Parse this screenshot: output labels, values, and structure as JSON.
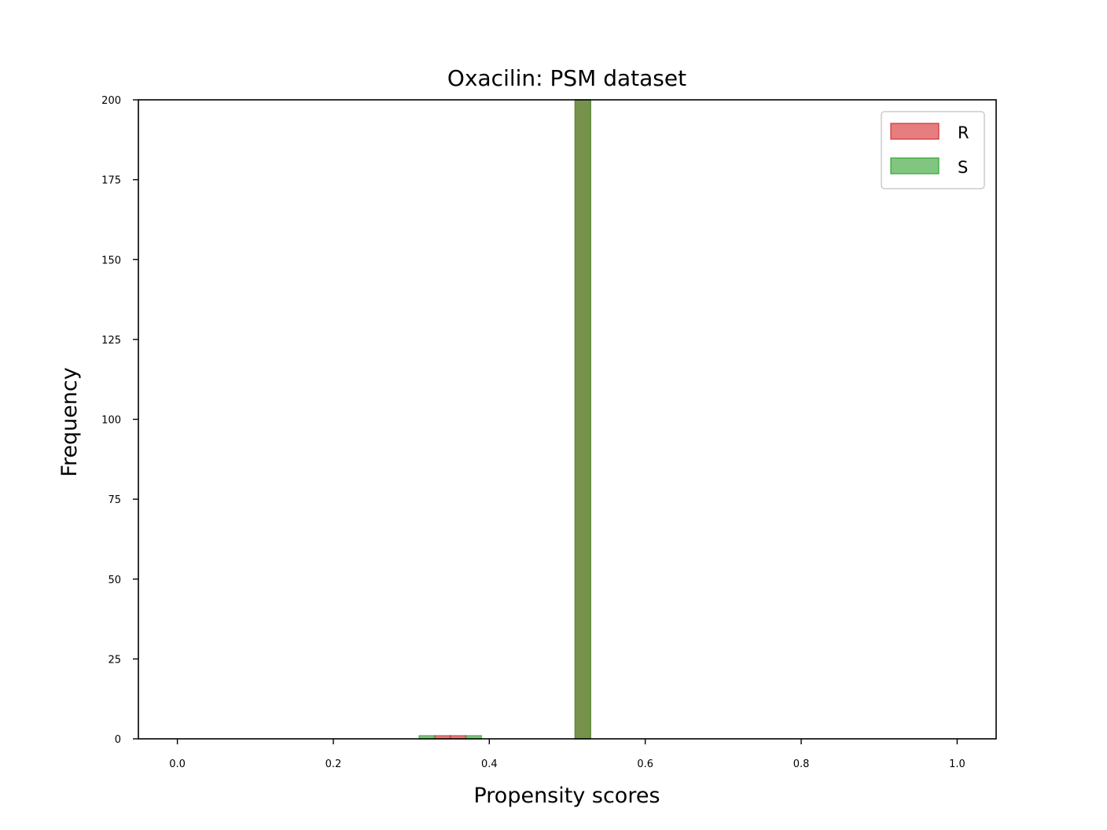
{
  "chart_data": {
    "type": "bar",
    "title": "Oxacilin: PSM dataset",
    "xlabel": "Propensity scores",
    "ylabel": "Frequency",
    "xlim": [
      -0.05,
      1.05
    ],
    "ylim": [
      0,
      200
    ],
    "xticks": [
      "0.0",
      "0.2",
      "0.4",
      "0.6",
      "0.8",
      "1.0"
    ],
    "yticks": [
      "0",
      "25",
      "50",
      "75",
      "100",
      "125",
      "150",
      "175",
      "200"
    ],
    "grid": false,
    "legend_position": "top-right",
    "bin_width": 0.02,
    "series": [
      {
        "name": "R",
        "color": "#d62728",
        "bins": [
          {
            "x0": 0.33,
            "x1": 0.35,
            "count": 1
          },
          {
            "x0": 0.35,
            "x1": 0.37,
            "count": 1
          },
          {
            "x0": 0.51,
            "x1": 0.53,
            "count": 200
          }
        ]
      },
      {
        "name": "S",
        "color": "#2ca02c",
        "bins": [
          {
            "x0": 0.31,
            "x1": 0.33,
            "count": 1
          },
          {
            "x0": 0.37,
            "x1": 0.39,
            "count": 1
          },
          {
            "x0": 0.51,
            "x1": 0.53,
            "count": 200
          }
        ]
      }
    ]
  }
}
